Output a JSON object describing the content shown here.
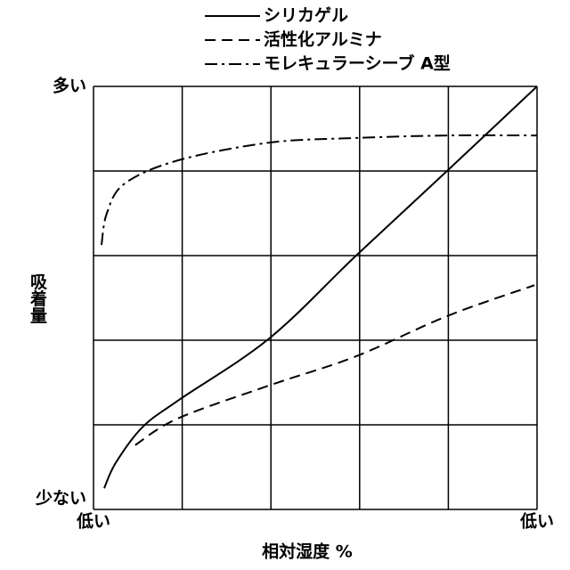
{
  "chart_data": {
    "type": "line",
    "xlabel": "相対湿度 %",
    "ylabel": "吸着量",
    "xlim": [
      0,
      100
    ],
    "ylim": [
      0,
      100
    ],
    "xticks": [
      {
        "value": 0,
        "label": "低い"
      },
      {
        "value": 100,
        "label": "低い"
      }
    ],
    "yticks": [
      {
        "value": 0,
        "label": "少ない"
      },
      {
        "value": 100,
        "label": "多い"
      }
    ],
    "xgrid": [
      0,
      20,
      40,
      60,
      80,
      100
    ],
    "ygrid": [
      0,
      20,
      40,
      60,
      80,
      100
    ],
    "series": [
      {
        "name": "シリカゲル",
        "color": "#000000",
        "style": "solid",
        "x": [
          2.4,
          5,
          11,
          19,
          39.6,
          59.2,
          79.7,
          100
        ],
        "values": [
          5,
          11,
          19.4,
          25.7,
          40.4,
          60,
          80,
          100
        ]
      },
      {
        "name": "活性化アルミナ",
        "color": "#000000",
        "style": "dashed",
        "x": [
          9.4,
          19,
          39.6,
          59.2,
          79.7,
          99.4
        ],
        "values": [
          15.2,
          21.5,
          29.3,
          36.2,
          45.7,
          53
        ]
      },
      {
        "name": "モレキュラーシーブ A型",
        "color": "#000000",
        "style": "dashdot",
        "x": [
          1.8,
          3,
          7,
          19,
          39.6,
          59,
          80,
          100
        ],
        "values": [
          62.5,
          70,
          77,
          82.5,
          86.7,
          87.8,
          88.4,
          88.4
        ]
      }
    ]
  }
}
